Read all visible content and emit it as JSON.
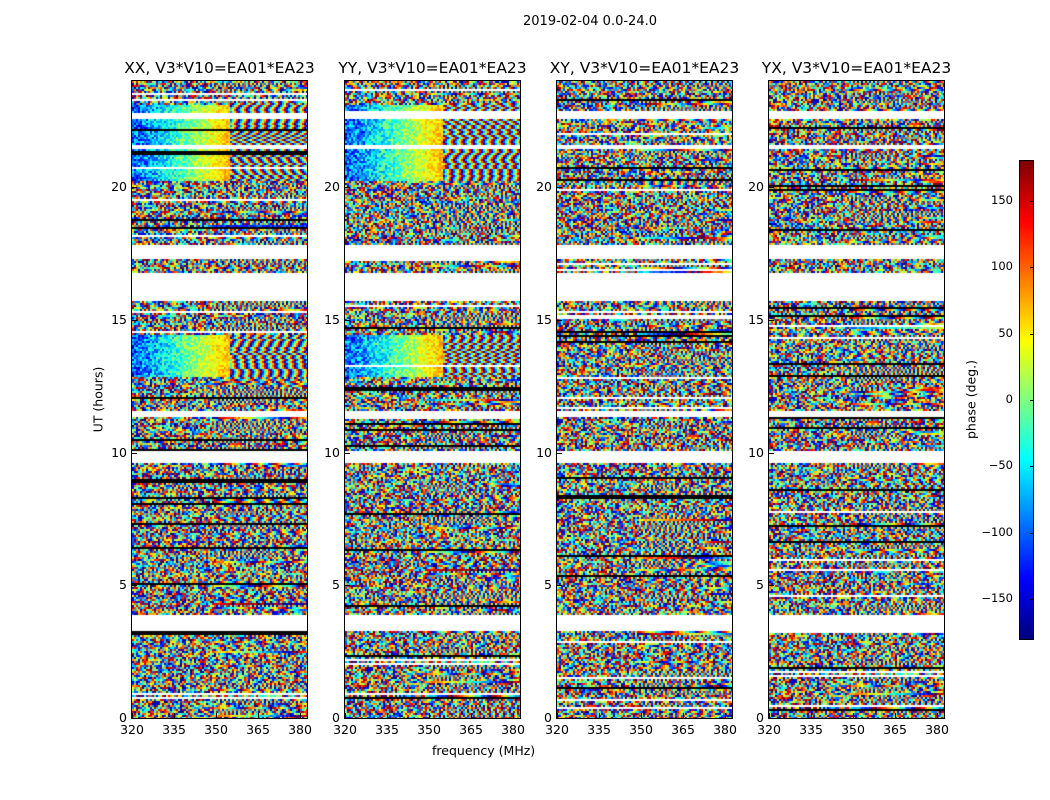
{
  "chart_data": {
    "type": "heatmap",
    "title": "2019-02-04 0.0-24.0",
    "xlabel": "frequency (MHz)",
    "ylabel": "UT (hours)",
    "xlim": [
      320,
      382.5
    ],
    "ylim": [
      0,
      24
    ],
    "xticks": [
      "320",
      "335",
      "350",
      "365",
      "380"
    ],
    "xtick_values": [
      320,
      335,
      350,
      365,
      380
    ],
    "yticks": [
      "0",
      "5",
      "10",
      "15",
      "20"
    ],
    "ytick_values": [
      0,
      5,
      10,
      15,
      20
    ],
    "panels": [
      {
        "title": "XX, V3*V10=EA01*EA23",
        "coherent_ranges": [
          [
            12.9,
            14.5
          ],
          [
            20.3,
            23.1
          ]
        ]
      },
      {
        "title": "YY, V3*V10=EA01*EA23",
        "coherent_ranges": [
          [
            12.9,
            14.5
          ],
          [
            20.3,
            23.1
          ]
        ]
      },
      {
        "title": "XY, V3*V10=EA01*EA23",
        "coherent_ranges": []
      },
      {
        "title": "YX, V3*V10=EA01*EA23",
        "coherent_ranges": []
      }
    ],
    "flagged_time_ranges": [
      [
        3.35,
        3.9
      ],
      [
        9.65,
        10.1
      ],
      [
        11.4,
        11.6
      ],
      [
        15.77,
        16.8
      ],
      [
        17.31,
        17.88
      ],
      [
        21.5,
        21.6
      ],
      [
        22.6,
        22.8
      ]
    ],
    "colorbar": {
      "label": "phase (deg.)",
      "range": [
        -180,
        180
      ],
      "colormap": "jet",
      "ticks": [
        "−150",
        "−100",
        "−50",
        "0",
        "50",
        "100",
        "150"
      ],
      "tick_values": [
        -150,
        -100,
        -50,
        0,
        50,
        100,
        150
      ]
    }
  }
}
